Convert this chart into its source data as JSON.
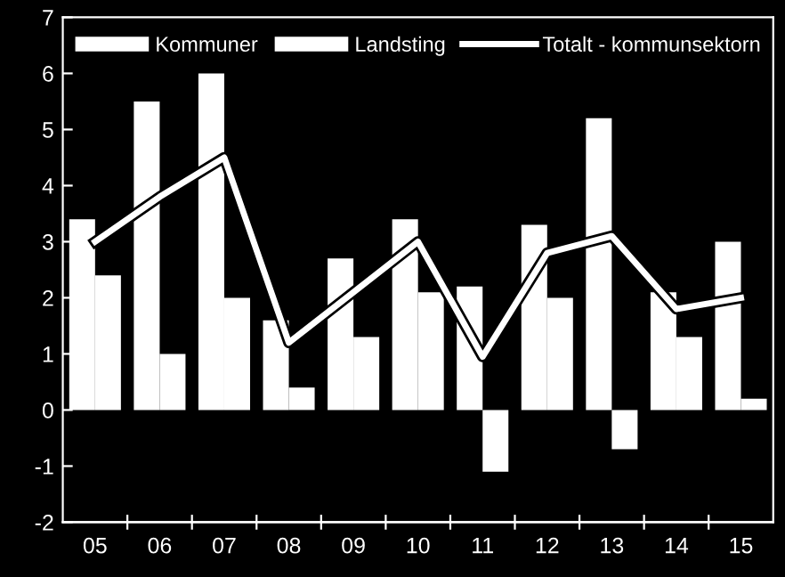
{
  "chart_data": {
    "type": "bar",
    "categories": [
      "05",
      "06",
      "07",
      "08",
      "09",
      "10",
      "11",
      "12",
      "13",
      "14",
      "15"
    ],
    "series": [
      {
        "name": "Kommuner",
        "color": "#ffffff",
        "values": [
          3.4,
          5.5,
          6.0,
          1.6,
          2.7,
          3.4,
          2.2,
          3.3,
          5.2,
          2.1,
          3.0
        ]
      },
      {
        "name": "Landsting",
        "color": "#ffffff",
        "values": [
          2.4,
          1.0,
          2.0,
          0.4,
          1.3,
          2.1,
          -1.1,
          2.0,
          -0.7,
          1.3,
          0.2
        ]
      },
      {
        "name": "Totalt - kommunsektorn",
        "type": "line",
        "color": "#ffffff",
        "values": [
          3.0,
          3.8,
          4.5,
          1.2,
          2.1,
          3.0,
          0.95,
          2.8,
          3.1,
          1.8,
          2.0
        ]
      }
    ],
    "ylim": [
      -2,
      7
    ],
    "yticks": [
      -2,
      -1,
      0,
      1,
      2,
      3,
      4,
      5,
      6,
      7
    ],
    "grid": false,
    "legend": "top",
    "marker": "none",
    "line_style": "solid"
  }
}
